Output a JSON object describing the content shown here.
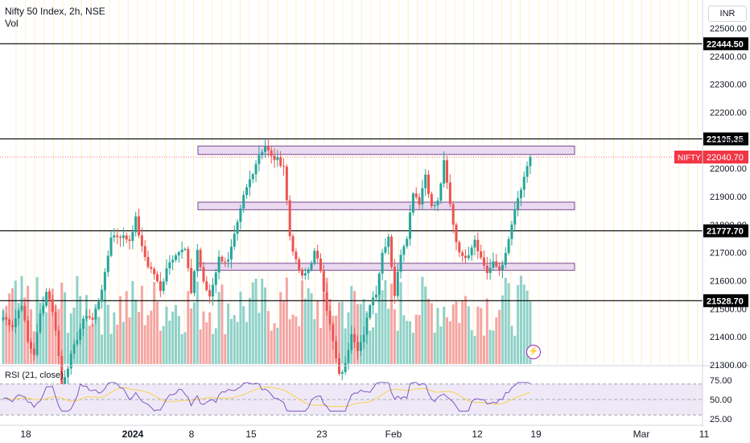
{
  "header": {
    "title": "Nifty 50 Index, 2h, NSE",
    "sub": "Vol"
  },
  "currency": "INR",
  "rsi_label": "RSI (21, close)",
  "colors": {
    "up": "#26a69a",
    "down": "#ef5350",
    "vol_up": "#8fd1c8",
    "vol_down": "#f5a5a3",
    "zone_fill": "#ead9f0",
    "zone_stroke": "#7b4a8c",
    "rsi_line": "#7e57c2",
    "rsi_ma": "#f5d66b",
    "rsi_band": "#efe9f7",
    "grid_v": "#fdf0c8",
    "grid_h": "#f0f3fa",
    "price_tag": "#f23645"
  },
  "price_axis": {
    "ticks": [
      "22500.00",
      "22400.00",
      "22300.00",
      "22200.00",
      "22100.00",
      "22000.00",
      "21900.00",
      "21800.00",
      "21700.00",
      "21600.00",
      "21500.00",
      "21400.00",
      "21300.00"
    ]
  },
  "rsi_axis": {
    "ticks": [
      "75.00",
      "50.00",
      "25.00"
    ]
  },
  "time_axis": {
    "labels": [
      "18",
      "2024",
      "8",
      "15",
      "23",
      "Feb",
      "12",
      "19",
      "Mar",
      "11"
    ]
  },
  "chart_data": {
    "type": "candlestick",
    "ylim": [
      21200,
      22560
    ],
    "levels": [
      {
        "value": 22444.5,
        "label": "22444.50"
      },
      {
        "value": 22105.35,
        "label": "22105.35"
      },
      {
        "value": 21777.7,
        "label": "21777.70"
      },
      {
        "value": 21528.7,
        "label": "21528.70"
      }
    ],
    "zones": [
      [
        22050,
        22080
      ],
      [
        21853,
        21880
      ],
      [
        21637,
        21662
      ]
    ],
    "current": {
      "symbol": "NIFTY",
      "value": 22040.7,
      "label": "22040.70"
    },
    "waypoints": [
      [
        0,
        21470
      ],
      [
        3,
        21440
      ],
      [
        6,
        21520
      ],
      [
        8,
        21380
      ],
      [
        10,
        21340
      ],
      [
        12,
        21480
      ],
      [
        14,
        21560
      ],
      [
        15,
        21540
      ],
      [
        17,
        21430
      ],
      [
        19,
        21230
      ],
      [
        22,
        21330
      ],
      [
        25,
        21430
      ],
      [
        27,
        21480
      ],
      [
        29,
        21460
      ],
      [
        31,
        21530
      ],
      [
        33,
        21620
      ],
      [
        35,
        21760
      ],
      [
        38,
        21760
      ],
      [
        41,
        21745
      ],
      [
        43,
        21820
      ],
      [
        45,
        21715
      ],
      [
        47,
        21655
      ],
      [
        49,
        21625
      ],
      [
        51,
        21560
      ],
      [
        53,
        21650
      ],
      [
        56,
        21700
      ],
      [
        59,
        21710
      ],
      [
        61,
        21560
      ],
      [
        63,
        21710
      ],
      [
        65,
        21590
      ],
      [
        67,
        21545
      ],
      [
        70,
        21680
      ],
      [
        73,
        21670
      ],
      [
        76,
        21800
      ],
      [
        78,
        21900
      ],
      [
        80,
        21960
      ],
      [
        83,
        22050
      ],
      [
        85,
        22080
      ],
      [
        87,
        22040
      ],
      [
        89,
        22030
      ],
      [
        91,
        22010
      ],
      [
        93,
        21760
      ],
      [
        95,
        21665
      ],
      [
        97,
        21610
      ],
      [
        99,
        21640
      ],
      [
        101,
        21700
      ],
      [
        103,
        21640
      ],
      [
        105,
        21500
      ],
      [
        107,
        21380
      ],
      [
        109,
        21260
      ],
      [
        111,
        21300
      ],
      [
        113,
        21420
      ],
      [
        115,
        21360
      ],
      [
        117,
        21400
      ],
      [
        119,
        21520
      ],
      [
        121,
        21560
      ],
      [
        123,
        21700
      ],
      [
        125,
        21760
      ],
      [
        127,
        21550
      ],
      [
        129,
        21700
      ],
      [
        131,
        21760
      ],
      [
        133,
        21920
      ],
      [
        135,
        21880
      ],
      [
        137,
        21980
      ],
      [
        139,
        21860
      ],
      [
        141,
        21880
      ],
      [
        143,
        22020
      ],
      [
        145,
        21870
      ],
      [
        147,
        21740
      ],
      [
        149,
        21680
      ],
      [
        151,
        21700
      ],
      [
        153,
        21750
      ],
      [
        155,
        21680
      ],
      [
        157,
        21630
      ],
      [
        159,
        21660
      ],
      [
        161,
        21640
      ],
      [
        163,
        21690
      ],
      [
        165,
        21800
      ],
      [
        167,
        21890
      ],
      [
        169,
        21960
      ],
      [
        171,
        22040
      ]
    ]
  }
}
